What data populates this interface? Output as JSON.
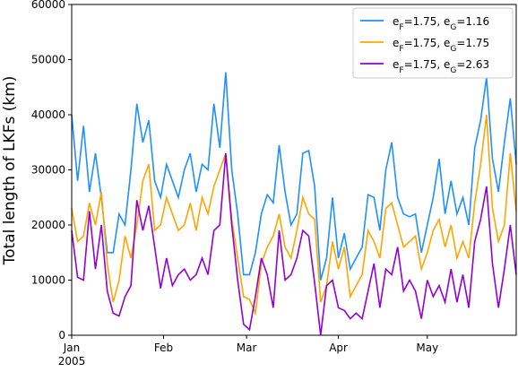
{
  "chart_data": {
    "type": "line",
    "ylabel": "Total length of LKFs (km)",
    "x": [
      "2005-01-01",
      "2005-01-03",
      "2005-01-05",
      "2005-01-07",
      "2005-01-09",
      "2005-01-11",
      "2005-01-13",
      "2005-01-15",
      "2005-01-17",
      "2005-01-19",
      "2005-01-21",
      "2005-01-23",
      "2005-01-25",
      "2005-01-27",
      "2005-01-29",
      "2005-01-31",
      "2005-02-02",
      "2005-02-04",
      "2005-02-06",
      "2005-02-08",
      "2005-02-10",
      "2005-02-12",
      "2005-02-14",
      "2005-02-16",
      "2005-02-18",
      "2005-02-20",
      "2005-02-22",
      "2005-02-24",
      "2005-02-26",
      "2005-02-28",
      "2005-03-02",
      "2005-03-04",
      "2005-03-06",
      "2005-03-08",
      "2005-03-10",
      "2005-03-12",
      "2005-03-14",
      "2005-03-16",
      "2005-03-18",
      "2005-03-20",
      "2005-03-22",
      "2005-03-24",
      "2005-03-26",
      "2005-03-28",
      "2005-03-30",
      "2005-04-01",
      "2005-04-03",
      "2005-04-05",
      "2005-04-07",
      "2005-04-09",
      "2005-04-11",
      "2005-04-13",
      "2005-04-15",
      "2005-04-17",
      "2005-04-19",
      "2005-04-21",
      "2005-04-23",
      "2005-04-25",
      "2005-04-27",
      "2005-04-29",
      "2005-05-01",
      "2005-05-03",
      "2005-05-05",
      "2005-05-07",
      "2005-05-09",
      "2005-05-11",
      "2005-05-13",
      "2005-05-15",
      "2005-05-17",
      "2005-05-19",
      "2005-05-21",
      "2005-05-23",
      "2005-05-25",
      "2005-05-27",
      "2005-05-29",
      "2005-05-31"
    ],
    "series": [
      {
        "name": "eF=1.75, eG=1.16",
        "color": "#1e90ff",
        "values": [
          40000,
          28000,
          38000,
          26000,
          33000,
          25000,
          15000,
          15000,
          22000,
          20000,
          30000,
          42000,
          35000,
          39000,
          28000,
          25000,
          31000,
          28000,
          25000,
          30000,
          33000,
          26000,
          31000,
          30000,
          42000,
          34000,
          47700,
          30000,
          22000,
          11000,
          11000,
          15000,
          22000,
          25500,
          24000,
          34500,
          26000,
          20000,
          22000,
          33000,
          33500,
          27000,
          10000,
          14000,
          25000,
          14000,
          18500,
          12000,
          14000,
          16000,
          25500,
          25000,
          19000,
          30000,
          35000,
          25000,
          22000,
          21500,
          22000,
          15000,
          20000,
          25000,
          32000,
          22000,
          28000,
          22000,
          25000,
          20000,
          34000,
          39000,
          46800,
          32000,
          26000,
          35000,
          43000,
          31000
        ]
      },
      {
        "name": "eF=1.75, eG=1.75",
        "color": "#ffa500",
        "values": [
          23000,
          17000,
          18000,
          24000,
          20000,
          26000,
          13000,
          6000,
          10000,
          18000,
          14000,
          20000,
          28000,
          31000,
          19000,
          20000,
          25000,
          22000,
          19000,
          20000,
          24000,
          19000,
          25000,
          22000,
          27000,
          30000,
          33000,
          21000,
          14000,
          7000,
          6500,
          4000,
          13000,
          16000,
          18000,
          22000,
          16000,
          14000,
          19000,
          25000,
          22000,
          21000,
          6000,
          9000,
          17000,
          12000,
          16000,
          7000,
          9000,
          11000,
          19000,
          17000,
          14000,
          23000,
          24000,
          20000,
          16000,
          17000,
          18000,
          12000,
          15000,
          19000,
          21000,
          16000,
          20000,
          14000,
          17000,
          14000,
          24000,
          31000,
          40000,
          23000,
          17000,
          20000,
          33000,
          22500
        ]
      },
      {
        "name": "eF=1.75, eG=2.63",
        "color": "#9400d3",
        "values": [
          19000,
          10500,
          10000,
          22500,
          12000,
          20000,
          8000,
          4000,
          3500,
          7000,
          9000,
          24500,
          19000,
          23500,
          16000,
          8500,
          14000,
          9000,
          11000,
          12000,
          10000,
          11000,
          14000,
          11000,
          19000,
          20000,
          33000,
          20000,
          10000,
          2000,
          1000,
          7000,
          14000,
          11000,
          5000,
          19000,
          10000,
          11000,
          14000,
          19000,
          18000,
          9500,
          0,
          9000,
          10000,
          5000,
          4500,
          3000,
          4000,
          3000,
          8000,
          13000,
          5000,
          12000,
          11000,
          16000,
          8000,
          10000,
          8000,
          3000,
          10000,
          7000,
          9000,
          6000,
          12000,
          6000,
          11000,
          5000,
          17000,
          21000,
          27000,
          13000,
          5000,
          12000,
          20000,
          11000
        ]
      }
    ],
    "xlim": [
      "2005-01-01",
      "2005-05-31"
    ],
    "xticks": [
      {
        "value": "2005-01-01",
        "label": "Jan"
      },
      {
        "value": "2005-02-01",
        "label": "Feb"
      },
      {
        "value": "2005-03-01",
        "label": "Mar"
      },
      {
        "value": "2005-04-01",
        "label": "Apr"
      },
      {
        "value": "2005-05-01",
        "label": "May"
      }
    ],
    "x_year_label": "2005",
    "ylim": [
      0,
      60000
    ],
    "yticks": [
      0,
      10000,
      20000,
      30000,
      40000,
      50000,
      60000
    ],
    "legend": "upper right"
  }
}
